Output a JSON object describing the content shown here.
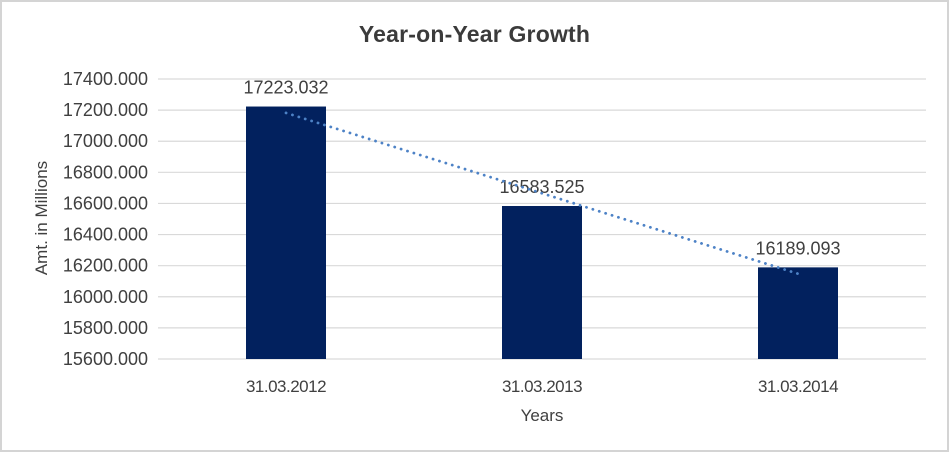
{
  "chart_data": {
    "type": "bar",
    "title": "Year-on-Year Growth",
    "xlabel": "Years",
    "ylabel": "Amt. in Millions",
    "categories": [
      "31.03.2012",
      "31.03.2013",
      "31.03.2014"
    ],
    "values": [
      17223.032,
      16583.525,
      16189.093
    ],
    "data_labels": [
      "17223.032",
      "16583.525",
      "16189.093"
    ],
    "ylim": [
      15600,
      17400
    ],
    "ytick_step": 200,
    "ytick_labels": [
      "17400.000",
      "17200.000",
      "17000.000",
      "16800.000",
      "16600.000",
      "16400.000",
      "16200.000",
      "16000.000",
      "15800.000",
      "15600.000"
    ],
    "grid": true,
    "legend": "none",
    "trendline": {
      "type": "linear",
      "style": "dotted"
    },
    "colors": {
      "bar": "#02215e",
      "trendline": "#4d82c6",
      "gridline": "#d9d9d9",
      "text": "#404040",
      "title_text": "#3b3b3b",
      "background": "#ffffff",
      "border": "#d4d4d4"
    }
  }
}
